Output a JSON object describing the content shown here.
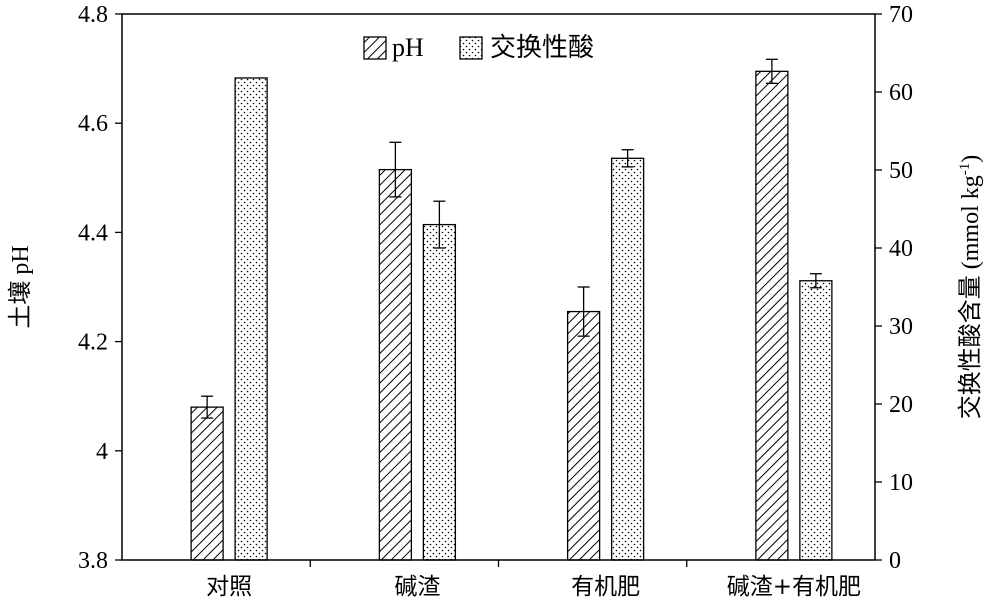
{
  "chart_data": {
    "type": "bar",
    "categories": [
      "对照",
      "碱渣",
      "有机肥",
      "碱渣+有机肥"
    ],
    "series": [
      {
        "name": "pH",
        "axis": "left",
        "values": [
          4.08,
          4.515,
          4.255,
          4.695
        ],
        "errors": [
          0.02,
          0.05,
          0.045,
          0.022
        ],
        "pattern": "diagonal-hatch"
      },
      {
        "name": "交换性酸",
        "axis": "right",
        "values": [
          61.8,
          43.0,
          51.5,
          35.8
        ],
        "errors": [
          0,
          3.0,
          1.1,
          0.9
        ],
        "pattern": "dots"
      }
    ],
    "ylabel_left": "土壤 pH",
    "ylabel_right": "交换性酸含量 (mmol kg",
    "ylabel_right_sup": "-1",
    "ylabel_right_close": ")",
    "ylim_left": [
      3.8,
      4.8
    ],
    "ylim_right": [
      0,
      70
    ],
    "yticks_left": [
      "3.8",
      "4",
      "4.2",
      "4.4",
      "4.6",
      "4.8"
    ],
    "yticks_right": [
      "0",
      "10",
      "20",
      "30",
      "40",
      "50",
      "60",
      "70"
    ],
    "grid": false,
    "legend_position": "top-center"
  }
}
